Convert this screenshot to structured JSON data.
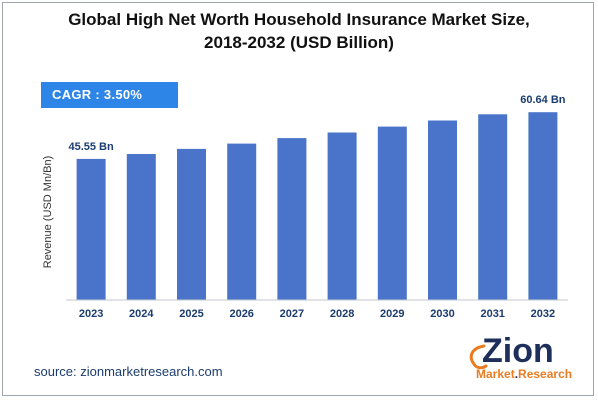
{
  "title_line1": "Global High Net Worth Household Insurance Market Size,",
  "title_line2": "2018-2032 (USD Billion)",
  "cagr_label": "CAGR : 3.50%",
  "source": "source: zionmarketresearch.com",
  "logo": {
    "word": "Zion",
    "tag_left": "Market",
    "tag_dot": ".",
    "tag_right": "Research"
  },
  "colors": {
    "bar": "#4a74c9",
    "cagr_box": "#2e85e8",
    "axis": "#c3c7cc"
  },
  "chart_data": {
    "type": "bar",
    "categories": [
      "2023",
      "2024",
      "2025",
      "2026",
      "2027",
      "2028",
      "2029",
      "2030",
      "2031",
      "2032"
    ],
    "values": [
      45.55,
      47.14,
      48.79,
      50.5,
      52.27,
      54.1,
      55.99,
      57.95,
      59.98,
      60.64
    ],
    "data_labels": {
      "0": "45.55 Bn",
      "9": "60.64 Bn"
    },
    "title": "Global High Net Worth Household Insurance Market Size, 2018-2032 (USD Billion)",
    "xlabel": "",
    "ylabel": "Revenue (USD Mn/Bn)",
    "ylim": [
      0,
      62
    ],
    "grid": false,
    "legend": "none"
  }
}
